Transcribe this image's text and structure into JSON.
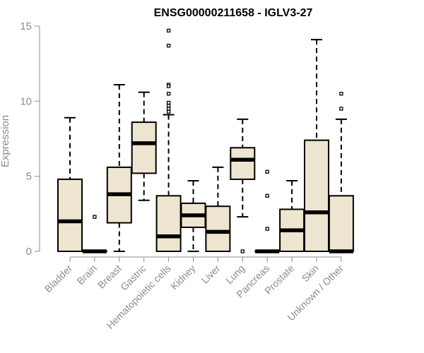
{
  "chart_data": {
    "type": "boxplot",
    "title": "ENSG00000211658 - IGLV3-27",
    "xlabel": "",
    "ylabel": "Expression",
    "ylim": [
      0,
      15
    ],
    "yticks": [
      0,
      5,
      10,
      15
    ],
    "grid": false,
    "colors": {
      "box_fill": "#ede5cf",
      "stroke": "#000000",
      "axis": "#8c8c8c",
      "title": "#000000"
    },
    "categories": [
      "Bladder",
      "Brain",
      "Breast",
      "Gastric",
      "Hematopoietic cells",
      "Kidney",
      "Liver",
      "Lung",
      "Pancreas",
      "Prostate",
      "Skin",
      "Unknown / Other"
    ],
    "boxes": [
      {
        "category": "Bladder",
        "whisker_low": 0,
        "q1": 0,
        "median": 2.0,
        "q3": 4.8,
        "whisker_high": 8.9,
        "outliers": []
      },
      {
        "category": "Brain",
        "whisker_low": 0,
        "q1": 0,
        "median": 0,
        "q3": 0,
        "whisker_high": 0,
        "outliers": [
          2.3
        ]
      },
      {
        "category": "Breast",
        "whisker_low": 0,
        "q1": 1.9,
        "median": 3.8,
        "q3": 5.6,
        "whisker_high": 11.1,
        "outliers": []
      },
      {
        "category": "Gastric",
        "whisker_low": 3.4,
        "q1": 5.2,
        "median": 7.2,
        "q3": 8.6,
        "whisker_high": 10.6,
        "outliers": []
      },
      {
        "category": "Hematopoietic cells",
        "whisker_low": 0,
        "q1": 0,
        "median": 1.0,
        "q3": 3.7,
        "whisker_high": 9.1,
        "outliers": [
          14.7,
          13.7,
          11.1,
          11.0,
          10.5,
          9.9,
          9.7,
          9.5,
          9.3
        ]
      },
      {
        "category": "Kidney",
        "whisker_low": 0,
        "q1": 1.6,
        "median": 2.4,
        "q3": 3.2,
        "whisker_high": 4.7,
        "outliers": []
      },
      {
        "category": "Liver",
        "whisker_low": 0,
        "q1": 0,
        "median": 1.3,
        "q3": 3.0,
        "whisker_high": 5.6,
        "outliers": []
      },
      {
        "category": "Lung",
        "whisker_low": 2.3,
        "q1": 4.8,
        "median": 6.1,
        "q3": 6.9,
        "whisker_high": 8.8,
        "outliers": [
          0
        ]
      },
      {
        "category": "Pancreas",
        "whisker_low": 0,
        "q1": 0,
        "median": 0,
        "q3": 0,
        "whisker_high": 0,
        "outliers": [
          5.3,
          3.7,
          1.5
        ]
      },
      {
        "category": "Prostate",
        "whisker_low": 0,
        "q1": 0,
        "median": 1.4,
        "q3": 2.8,
        "whisker_high": 4.7,
        "outliers": []
      },
      {
        "category": "Skin",
        "whisker_low": 0,
        "q1": 0,
        "median": 2.6,
        "q3": 7.4,
        "whisker_high": 14.1,
        "outliers": []
      },
      {
        "category": "Unknown / Other",
        "whisker_low": 0,
        "q1": 0,
        "median": 0,
        "q3": 3.7,
        "whisker_high": 8.8,
        "outliers": [
          10.5,
          9.5
        ]
      }
    ]
  }
}
